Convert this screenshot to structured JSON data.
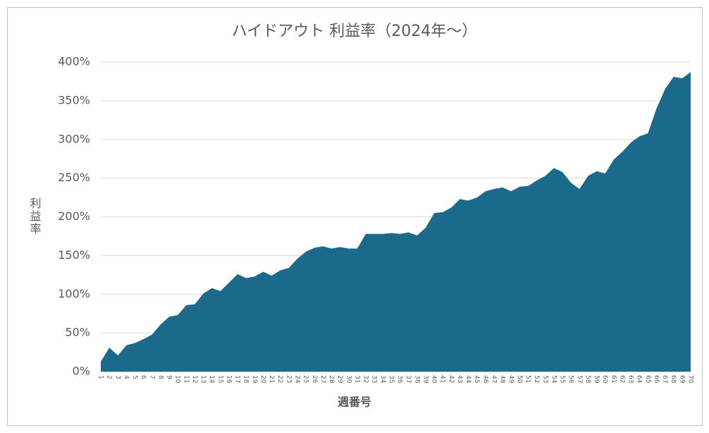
{
  "chart_data": {
    "type": "area",
    "title": "ハイドアウト 利益率（2024年～）",
    "x_label": "週番号",
    "y_label": "利益率",
    "categories": [
      "1",
      "2",
      "3",
      "4",
      "5",
      "6",
      "7",
      "8",
      "9",
      "10",
      "11",
      "12",
      "13",
      "14",
      "15",
      "16",
      "17",
      "18",
      "19",
      "20",
      "21",
      "22",
      "23",
      "24",
      "25",
      "26",
      "27",
      "28",
      "29",
      "30",
      "31",
      "32",
      "33",
      "34",
      "35",
      "36",
      "37",
      "38",
      "39",
      "40",
      "41",
      "42",
      "43",
      "44",
      "45",
      "46",
      "47",
      "48",
      "49",
      "50",
      "51",
      "52",
      "53",
      "54",
      "55",
      "56",
      "57",
      "58",
      "59",
      "60",
      "61",
      "62",
      "63",
      "64",
      "65",
      "66",
      "67",
      "68",
      "69",
      "70"
    ],
    "values": [
      13,
      31,
      21,
      34,
      37,
      42,
      48,
      61,
      71,
      73,
      86,
      87,
      101,
      108,
      104,
      115,
      126,
      121,
      123,
      129,
      124,
      131,
      134,
      146,
      155,
      160,
      162,
      159,
      161,
      159,
      159,
      178,
      178,
      178,
      179,
      178,
      180,
      176,
      186,
      205,
      206,
      212,
      223,
      221,
      225,
      233,
      236,
      238,
      233,
      239,
      240,
      247,
      253,
      263,
      258,
      244,
      236,
      253,
      259,
      256,
      274,
      284,
      296,
      304,
      308,
      340,
      365,
      381,
      379,
      387
    ],
    "color": "#1b6a8c",
    "ylim": [
      0,
      400
    ],
    "yticks": [
      {
        "value": 0,
        "label": "0%"
      },
      {
        "value": 50,
        "label": "50%"
      },
      {
        "value": 100,
        "label": "100%"
      },
      {
        "value": 150,
        "label": "150%"
      },
      {
        "value": 200,
        "label": "200%"
      },
      {
        "value": 250,
        "label": "250%"
      },
      {
        "value": 300,
        "label": "300%"
      },
      {
        "value": 350,
        "label": "350%"
      },
      {
        "value": 400,
        "label": "400%"
      }
    ],
    "grid": true
  }
}
